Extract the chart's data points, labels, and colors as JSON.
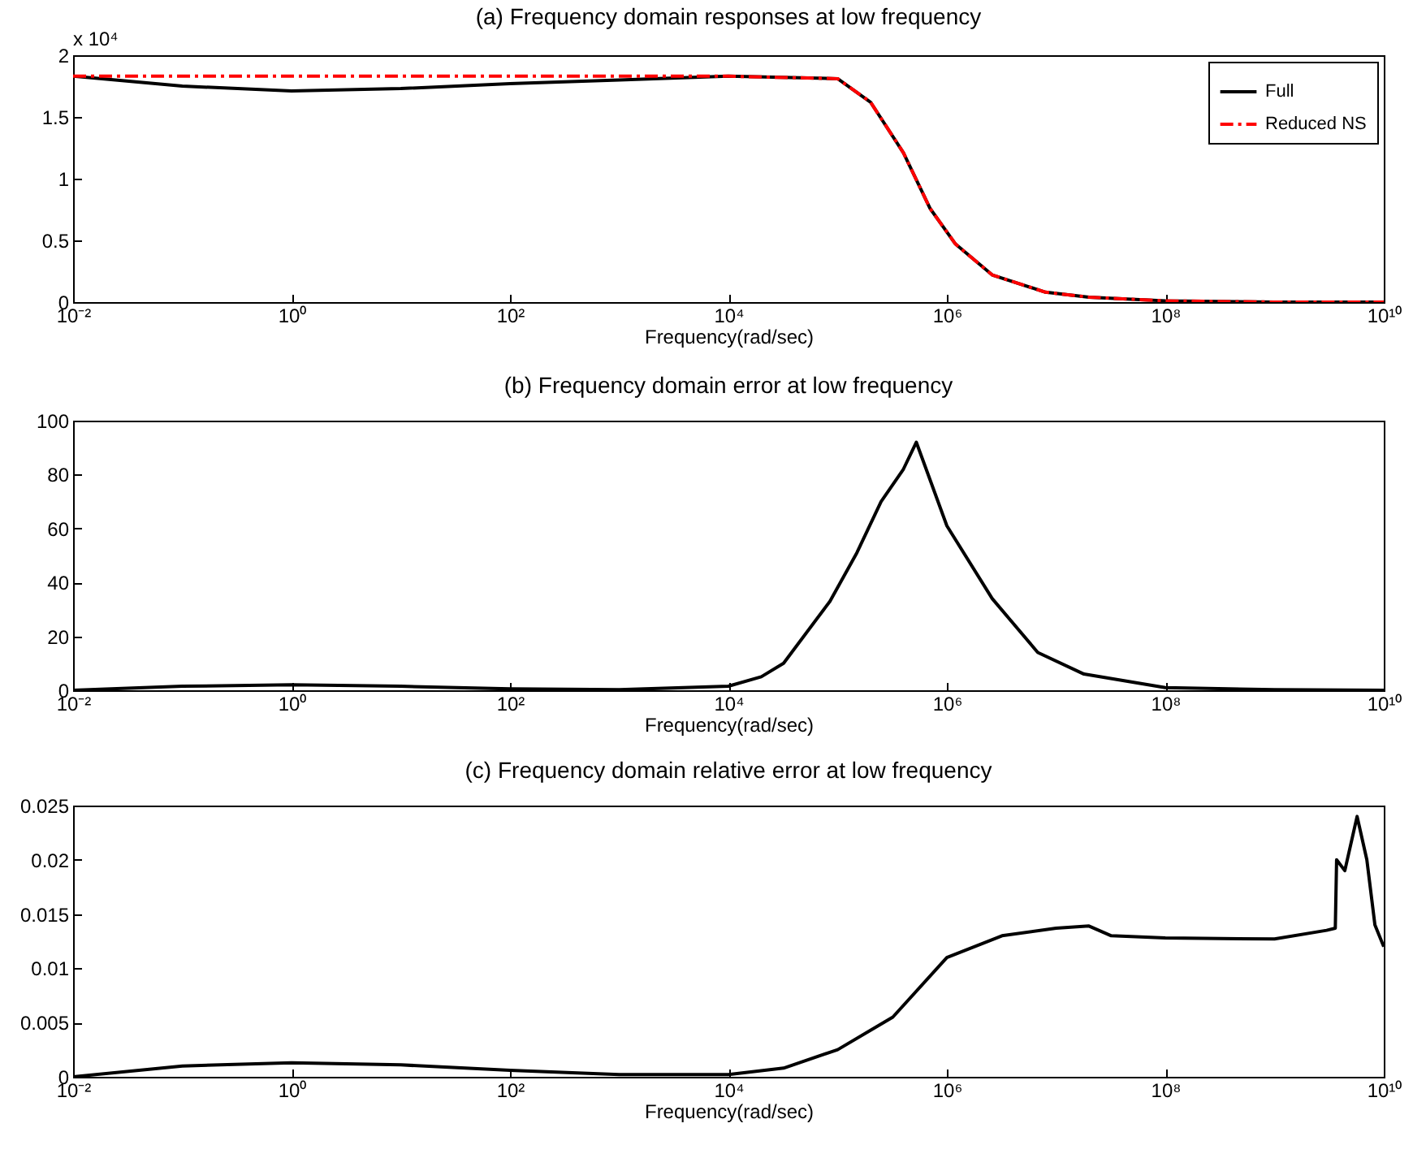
{
  "chart_data": [
    {
      "type": "line",
      "title": "(a) Frequency domain responses at low frequency",
      "xlabel": "Frequency(rad/sec)",
      "log": "x",
      "legend": "top right",
      "xlim": [
        0.01,
        10000000000
      ],
      "xticks": [
        {
          "value": 0.01,
          "label": "10⁻²"
        },
        {
          "value": 1,
          "label": "10⁰"
        },
        {
          "value": 100,
          "label": "10²"
        },
        {
          "value": 10000,
          "label": "10⁴"
        },
        {
          "value": 1000000,
          "label": "10⁶"
        },
        {
          "value": 100000000,
          "label": "10⁸"
        },
        {
          "value": 10000000000,
          "label": "10¹⁰"
        }
      ],
      "ylim": [
        0,
        2
      ],
      "yticks": [
        0,
        0.5,
        1,
        1.5,
        2
      ],
      "annotations": [
        "x 10⁴"
      ],
      "series": [
        {
          "name": "Full",
          "color": "#000000",
          "line_style": "solid",
          "x": [
            0.01,
            0.1,
            1,
            10,
            100,
            1000,
            10000,
            100000,
            200000,
            400000,
            700000,
            1200000,
            2600000,
            8000000,
            20000000,
            100000000,
            1000000000,
            10000000000
          ],
          "values": [
            1.83,
            1.75,
            1.71,
            1.73,
            1.77,
            1.8,
            1.83,
            1.81,
            1.62,
            1.21,
            0.76,
            0.47,
            0.22,
            0.08,
            0.04,
            0.01,
            0,
            0
          ]
        },
        {
          "name": "Reduced NS",
          "color": "#ff0000",
          "line_style": "dashed",
          "x": [
            0.01,
            0.1,
            1,
            10,
            100,
            1000,
            10000,
            100000,
            200000,
            400000,
            700000,
            1200000,
            2600000,
            8000000,
            20000000,
            100000000,
            1000000000,
            10000000000
          ],
          "values": [
            1.83,
            1.83,
            1.83,
            1.83,
            1.83,
            1.83,
            1.83,
            1.81,
            1.62,
            1.21,
            0.76,
            0.47,
            0.22,
            0.08,
            0.04,
            0.01,
            0,
            0
          ]
        }
      ]
    },
    {
      "type": "line",
      "title": "(b) Frequency domain error at low frequency",
      "xlabel": "Frequency(rad/sec)",
      "log": "x",
      "xlim": [
        0.01,
        10000000000
      ],
      "xticks": [
        {
          "value": 0.01,
          "label": "10⁻²"
        },
        {
          "value": 1,
          "label": "10⁰"
        },
        {
          "value": 100,
          "label": "10²"
        },
        {
          "value": 10000,
          "label": "10⁴"
        },
        {
          "value": 1000000,
          "label": "10⁶"
        },
        {
          "value": 100000000,
          "label": "10⁸"
        },
        {
          "value": 10000000000,
          "label": "10¹⁰"
        }
      ],
      "ylim": [
        0,
        100
      ],
      "yticks": [
        0,
        20,
        40,
        60,
        80,
        100
      ],
      "series": [
        {
          "color": "#000000",
          "line_style": "solid",
          "x": [
            0.01,
            0.1,
            1,
            10,
            100,
            1000,
            10000,
            20000,
            32000,
            85000,
            150000,
            250000,
            400000,
            525000,
            1000000,
            2600000,
            6800000,
            18000000,
            100000000,
            1000000000,
            10000000000
          ],
          "values": [
            0,
            1.5,
            2,
            1.5,
            0.5,
            0.2,
            1.5,
            5,
            10,
            33,
            51,
            70,
            82,
            92,
            61,
            34,
            14,
            6,
            1,
            0.2,
            0
          ]
        }
      ]
    },
    {
      "type": "line",
      "title": "(c) Frequency domain relative error at low frequency",
      "xlabel": "Frequency(rad/sec)",
      "log": "x",
      "xlim": [
        0.01,
        10000000000
      ],
      "xticks": [
        {
          "value": 0.01,
          "label": "10⁻²"
        },
        {
          "value": 1,
          "label": "10⁰"
        },
        {
          "value": 100,
          "label": "10²"
        },
        {
          "value": 10000,
          "label": "10⁴"
        },
        {
          "value": 1000000,
          "label": "10⁶"
        },
        {
          "value": 100000000,
          "label": "10⁸"
        },
        {
          "value": 10000000000,
          "label": "10¹⁰"
        }
      ],
      "ylim": [
        0,
        0.025
      ],
      "yticks": [
        0,
        0.005,
        0.01,
        0.015,
        0.02,
        0.025
      ],
      "series": [
        {
          "color": "#000000",
          "line_style": "solid",
          "x": [
            0.01,
            0.1,
            1,
            10,
            100,
            1000,
            10000,
            32000,
            100000,
            320000,
            1000000,
            3200000,
            10000000,
            20000000,
            32000000,
            100000000,
            1000000000,
            3000000000,
            3600000000,
            3700000000,
            4400000000,
            5700000000,
            7000000000,
            8300000000,
            10000000000
          ],
          "values": [
            0,
            0.001,
            0.0013,
            0.0011,
            0.0006,
            0.0002,
            0.0002,
            0.0008,
            0.0025,
            0.0055,
            0.011,
            0.013,
            0.0137,
            0.0139,
            0.013,
            0.0128,
            0.0127,
            0.0135,
            0.0137,
            0.02,
            0.019,
            0.024,
            0.02,
            0.014,
            0.012
          ]
        }
      ]
    }
  ]
}
